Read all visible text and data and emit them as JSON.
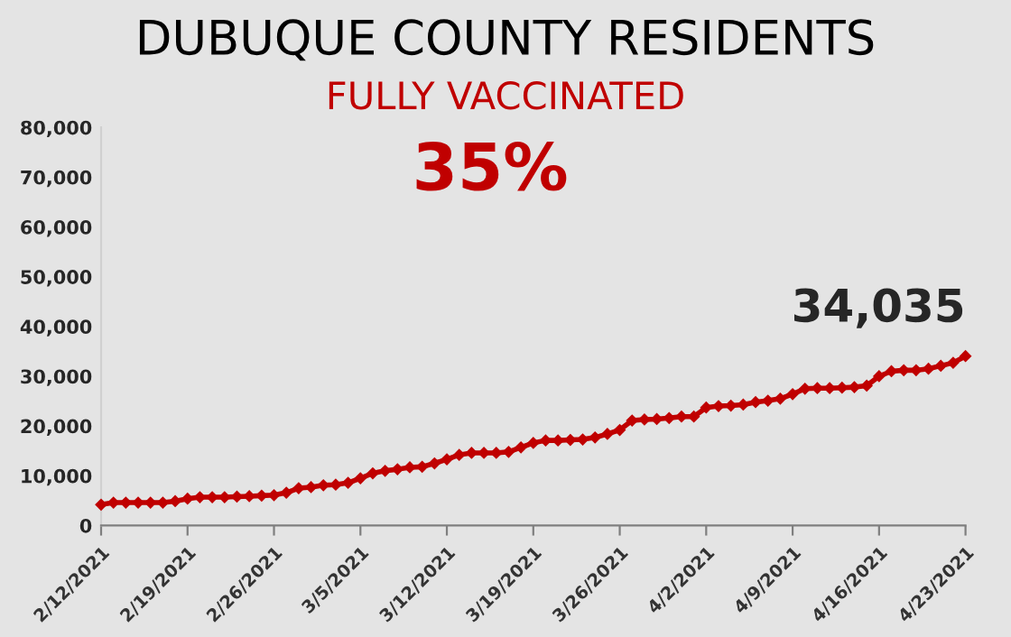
{
  "chart_data": {
    "type": "line",
    "title": "DUBUQUE COUNTY RESIDENTS",
    "subtitle": "FULLY VACCINATED",
    "annotations": [
      "35%",
      {
        "text": "34,035",
        "x": "2021-04-23",
        "y": 34035
      }
    ],
    "x": [
      "2021-02-12",
      "2021-02-13",
      "2021-02-14",
      "2021-02-15",
      "2021-02-16",
      "2021-02-17",
      "2021-02-18",
      "2021-02-19",
      "2021-02-20",
      "2021-02-21",
      "2021-02-22",
      "2021-02-23",
      "2021-02-24",
      "2021-02-25",
      "2021-02-26",
      "2021-02-27",
      "2021-02-28",
      "2021-03-01",
      "2021-03-02",
      "2021-03-03",
      "2021-03-04",
      "2021-03-05",
      "2021-03-06",
      "2021-03-07",
      "2021-03-08",
      "2021-03-09",
      "2021-03-10",
      "2021-03-11",
      "2021-03-12",
      "2021-03-13",
      "2021-03-14",
      "2021-03-15",
      "2021-03-16",
      "2021-03-17",
      "2021-03-18",
      "2021-03-19",
      "2021-03-20",
      "2021-03-21",
      "2021-03-22",
      "2021-03-23",
      "2021-03-24",
      "2021-03-25",
      "2021-03-26",
      "2021-03-27",
      "2021-03-28",
      "2021-03-29",
      "2021-03-30",
      "2021-03-31",
      "2021-04-01",
      "2021-04-02",
      "2021-04-03",
      "2021-04-04",
      "2021-04-05",
      "2021-04-06",
      "2021-04-07",
      "2021-04-08",
      "2021-04-09",
      "2021-04-10",
      "2021-04-11",
      "2021-04-12",
      "2021-04-13",
      "2021-04-14",
      "2021-04-15",
      "2021-04-16",
      "2021-04-17",
      "2021-04-18",
      "2021-04-19",
      "2021-04-20",
      "2021-04-21",
      "2021-04-22",
      "2021-04-23"
    ],
    "series": [
      {
        "color": "#c00000",
        "values": [
          4200,
          4600,
          4600,
          4600,
          4600,
          4600,
          4900,
          5400,
          5700,
          5700,
          5700,
          5800,
          5900,
          6000,
          6100,
          6600,
          7500,
          7700,
          8100,
          8200,
          8600,
          9500,
          10500,
          11000,
          11300,
          11700,
          11800,
          12500,
          13300,
          14200,
          14600,
          14600,
          14600,
          14800,
          15700,
          16600,
          17100,
          17100,
          17200,
          17300,
          17700,
          18400,
          19200,
          21100,
          21300,
          21400,
          21600,
          21900,
          21900,
          23700,
          24000,
          24100,
          24300,
          24800,
          25100,
          25500,
          26400,
          27500,
          27600,
          27600,
          27700,
          27800,
          28100,
          30000,
          31000,
          31200,
          31200,
          31500,
          32100,
          32700,
          34035
        ]
      }
    ],
    "xlim": [
      "2021-02-12",
      "2021-04-23"
    ],
    "xticks": [
      {
        "value": "2021-02-12",
        "label": "2/12/2021"
      },
      {
        "value": "2021-02-19",
        "label": "2/19/2021"
      },
      {
        "value": "2021-02-26",
        "label": "2/26/2021"
      },
      {
        "value": "2021-03-05",
        "label": "3/5/2021"
      },
      {
        "value": "2021-03-12",
        "label": "3/12/2021"
      },
      {
        "value": "2021-03-19",
        "label": "3/19/2021"
      },
      {
        "value": "2021-03-26",
        "label": "3/26/2021"
      },
      {
        "value": "2021-04-02",
        "label": "4/2/2021"
      },
      {
        "value": "2021-04-09",
        "label": "4/9/2021"
      },
      {
        "value": "2021-04-16",
        "label": "4/16/2021"
      },
      {
        "value": "2021-04-23",
        "label": "4/23/2021"
      }
    ],
    "ylim": [
      0,
      80000
    ],
    "yticks": [
      0,
      {
        "value": 10000,
        "label": "10,000"
      },
      {
        "value": 20000,
        "label": "20,000"
      },
      {
        "value": 30000,
        "label": "30,000"
      },
      {
        "value": 40000,
        "label": "40,000"
      },
      {
        "value": 50000,
        "label": "50,000"
      },
      {
        "value": 60000,
        "label": "60,000"
      },
      {
        "value": 70000,
        "label": "70,000"
      },
      {
        "value": 80000,
        "label": "80,000"
      }
    ],
    "grid": false,
    "legend": false,
    "marker": "diamond",
    "line_style": "solid"
  }
}
